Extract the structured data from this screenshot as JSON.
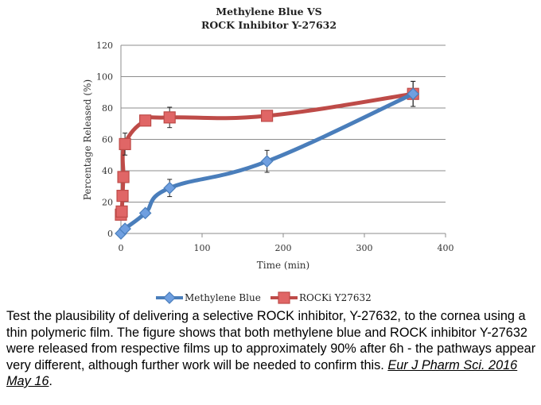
{
  "chart_data": {
    "type": "line",
    "title": [
      "Methylene Blue VS",
      "ROCK Inhibitor Y-27632"
    ],
    "xlabel": "Time (min)",
    "ylabel": "Percentage Released (%)",
    "xlim": [
      0,
      400
    ],
    "ylim": [
      0,
      120
    ],
    "xticks": [
      0,
      100,
      200,
      300,
      400
    ],
    "yticks": [
      0,
      20,
      40,
      60,
      80,
      100,
      120
    ],
    "grid": "horizontal",
    "legend": "bottom",
    "series": [
      {
        "name": "Methylene Blue",
        "color": "#4a7ebb",
        "marker": "diamond",
        "x": [
          0,
          5,
          30,
          60,
          180,
          360
        ],
        "y": [
          0,
          3,
          13,
          29,
          46,
          89
        ],
        "err": [
          0,
          1,
          2,
          5.5,
          7,
          8
        ]
      },
      {
        "name": "ROCKi Y27632",
        "color": "#be4b48",
        "marker": "square",
        "x": [
          0,
          1,
          2,
          3,
          5,
          30,
          60,
          180,
          360
        ],
        "y": [
          12,
          14,
          24,
          36,
          57,
          72,
          74,
          75,
          89
        ],
        "err": [
          0,
          0,
          0,
          0,
          7,
          1,
          6.5,
          0,
          8
        ]
      }
    ]
  },
  "caption": {
    "text": "Test the plausibility of delivering a selective ROCK inhibitor, Y-27632, to the cornea using a thin polymeric film. The figure shows that both methylene blue and ROCK inhibitor Y-27632 were released from respective films up to approximately 90% after 6h - the pathways appear very different, although further work will be needed to confirm this. ",
    "reference": "Eur J Pharm Sci. 2016 May 16",
    "end": "."
  }
}
